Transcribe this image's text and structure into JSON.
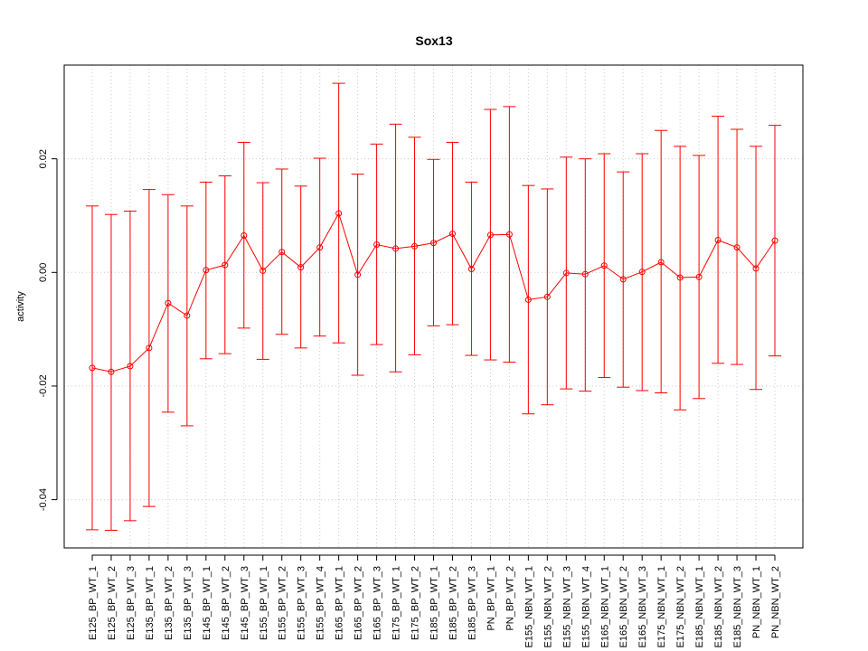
{
  "chart_data": {
    "type": "line",
    "title": "Sox13",
    "xlabel": "",
    "ylabel": "activity",
    "ylim": [
      -0.0485,
      0.0365
    ],
    "yticks": [
      -0.04,
      -0.02,
      0.0,
      0.02
    ],
    "ytick_labels": [
      "-0.04",
      "-0.02",
      "0.00",
      "0.02"
    ],
    "grid": true,
    "legend": "none",
    "categories": [
      "E125_BP_WT_1",
      "E125_BP_WT_2",
      "E125_BP_WT_3",
      "E135_BP_WT_1",
      "E135_BP_WT_2",
      "E135_BP_WT_3",
      "E145_BP_WT_1",
      "E145_BP_WT_2",
      "E145_BP_WT_3",
      "E155_BP_WT_1",
      "E155_BP_WT_2",
      "E155_BP_WT_3",
      "E155_BP_WT_4",
      "E165_BP_WT_1",
      "E165_BP_WT_2",
      "E165_BP_WT_3",
      "E175_BP_WT_1",
      "E175_BP_WT_2",
      "E185_BP_WT_1",
      "E185_BP_WT_2",
      "E185_BP_WT_3",
      "PN_BP_WT_1",
      "PN_BP_WT_2",
      "E155_NBN_WT_1",
      "E155_NBN_WT_2",
      "E155_NBN_WT_3",
      "E155_NBN_WT_4",
      "E165_NBN_WT_1",
      "E165_NBN_WT_2",
      "E165_NBN_WT_3",
      "E175_NBN_WT_1",
      "E175_NBN_WT_2",
      "E185_NBN_WT_1",
      "E185_NBN_WT_2",
      "E185_NBN_WT_3",
      "PN_NBN_WT_1",
      "PN_NBN_WT_2"
    ],
    "series": [
      {
        "values": [
          -0.0168,
          -0.0175,
          -0.0165,
          -0.0133,
          -0.0054,
          -0.0076,
          0.0004,
          0.0013,
          0.0065,
          0.0003,
          0.0036,
          0.0009,
          0.0044,
          0.0104,
          -0.0004,
          0.0049,
          0.0042,
          0.0046,
          0.0052,
          0.0068,
          0.0006,
          0.0066,
          0.0067,
          -0.0048,
          -0.0043,
          -0.0001,
          -0.0003,
          0.0012,
          -0.0012,
          0.0001,
          0.0018,
          -0.0009,
          -0.0008,
          0.0057,
          0.0044,
          0.0007,
          0.0056
        ],
        "upper": [
          0.0117,
          0.0102,
          0.0108,
          0.0146,
          0.0137,
          0.0117,
          0.0159,
          0.017,
          0.0229,
          0.0158,
          0.0182,
          0.0152,
          0.0201,
          0.0333,
          0.0173,
          0.0226,
          0.0261,
          0.0238,
          0.0199,
          0.0229,
          0.0159,
          0.0287,
          0.0292,
          0.0153,
          0.0147,
          0.0203,
          0.02,
          0.0209,
          0.0177,
          0.0209,
          0.025,
          0.0222,
          0.0206,
          0.0275,
          0.0252,
          0.0222,
          0.0259
        ],
        "lower": [
          -0.0453,
          -0.0454,
          -0.0437,
          -0.0412,
          -0.0246,
          -0.027,
          -0.0152,
          -0.0143,
          -0.0098,
          -0.0153,
          -0.0109,
          -0.0133,
          -0.0112,
          -0.0124,
          -0.0181,
          -0.0127,
          -0.0175,
          -0.0145,
          -0.0094,
          -0.0092,
          -0.0146,
          -0.0154,
          -0.0158,
          -0.0249,
          -0.0233,
          -0.0205,
          -0.0209,
          -0.0185,
          -0.0202,
          -0.0208,
          -0.0212,
          -0.0242,
          -0.0222,
          -0.016,
          -0.0162,
          -0.0206,
          -0.0147
        ]
      }
    ]
  },
  "colors": {
    "series": "#ff0000",
    "grid": "#cccccc",
    "axis": "#000000"
  }
}
